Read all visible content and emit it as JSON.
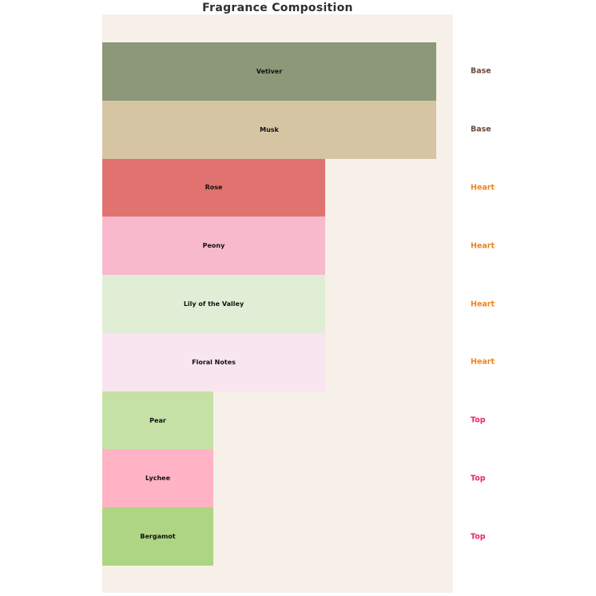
{
  "title": "Fragrance Composition",
  "palette": {
    "page_background": "#ffffff",
    "plot_background": "#f7f0e8",
    "title_color": "#2e2e2e",
    "bar_label_color": "#111111"
  },
  "chart_data": {
    "type": "bar",
    "orientation": "horizontal",
    "title": "Fragrance Composition",
    "xlabel": "",
    "ylabel": "",
    "xlim": [
      0,
      3.15
    ],
    "grid": false,
    "axes_visible": false,
    "legend_position": "right-of-bars",
    "plot_background": "#f7f0e8",
    "categories": [
      "Vetiver",
      "Musk",
      "Rose",
      "Peony",
      "Lily of the Valley",
      "Floral Notes",
      "Pear",
      "Lychee",
      "Bergamot"
    ],
    "values": [
      3,
      3,
      2,
      2,
      2,
      2,
      1,
      1,
      1
    ],
    "right_labels": [
      "Base",
      "Base",
      "Heart",
      "Heart",
      "Heart",
      "Heart",
      "Top",
      "Top",
      "Top"
    ],
    "level_colors": {
      "Base": "#6e4a3f",
      "Heart": "#f28219",
      "Top": "#ec2074"
    },
    "notes": [
      {
        "name": "Vetiver",
        "level": "Base",
        "value": 3,
        "color": "#8c9878"
      },
      {
        "name": "Musk",
        "level": "Base",
        "value": 3,
        "color": "#d6c5a3"
      },
      {
        "name": "Rose",
        "level": "Heart",
        "value": 2,
        "color": "#e07370"
      },
      {
        "name": "Peony",
        "level": "Heart",
        "value": 2,
        "color": "#f8b9cc"
      },
      {
        "name": "Lily of the Valley",
        "level": "Heart",
        "value": 2,
        "color": "#e0eed6"
      },
      {
        "name": "Floral Notes",
        "level": "Heart",
        "value": 2,
        "color": "#f8e5f0"
      },
      {
        "name": "Pear",
        "level": "Top",
        "value": 1,
        "color": "#c5e1a5"
      },
      {
        "name": "Lychee",
        "level": "Top",
        "value": 1,
        "color": "#ffb3c4"
      },
      {
        "name": "Bergamot",
        "level": "Top",
        "value": 1,
        "color": "#aed581"
      }
    ]
  }
}
